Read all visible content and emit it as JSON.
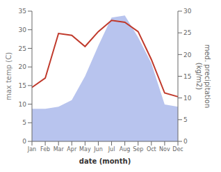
{
  "chart_data": {
    "type": "line",
    "x_label": "date (month)",
    "y_label": "max temp (C)",
    "y2_label": "med. precipitation\n(kg/m2)",
    "categories": [
      "Jan",
      "Feb",
      "Mar",
      "Apr",
      "May",
      "Jun",
      "Jul",
      "Aug",
      "Sep",
      "Oct",
      "Nov",
      "Dec"
    ],
    "series": [
      {
        "type": "area",
        "axis": "y2",
        "color": "#b8c4ee",
        "values": [
          7.5,
          7.5,
          8.0,
          9.5,
          15.0,
          22.0,
          28.5,
          29.0,
          24.0,
          18.0,
          8.5,
          8.0
        ]
      },
      {
        "type": "line",
        "color": "#c0392b",
        "values": [
          14.5,
          17.0,
          29.0,
          28.5,
          25.5,
          29.5,
          32.5,
          32.0,
          29.5,
          22.0,
          13.0,
          12.0
        ]
      }
    ],
    "ylim": [
      0,
      35
    ],
    "yticks": [
      0,
      5,
      10,
      15,
      20,
      25,
      30,
      35
    ],
    "y2lim": [
      0,
      30
    ],
    "y2ticks": [
      0,
      5,
      10,
      15,
      20,
      25,
      30
    ],
    "grid": false
  }
}
